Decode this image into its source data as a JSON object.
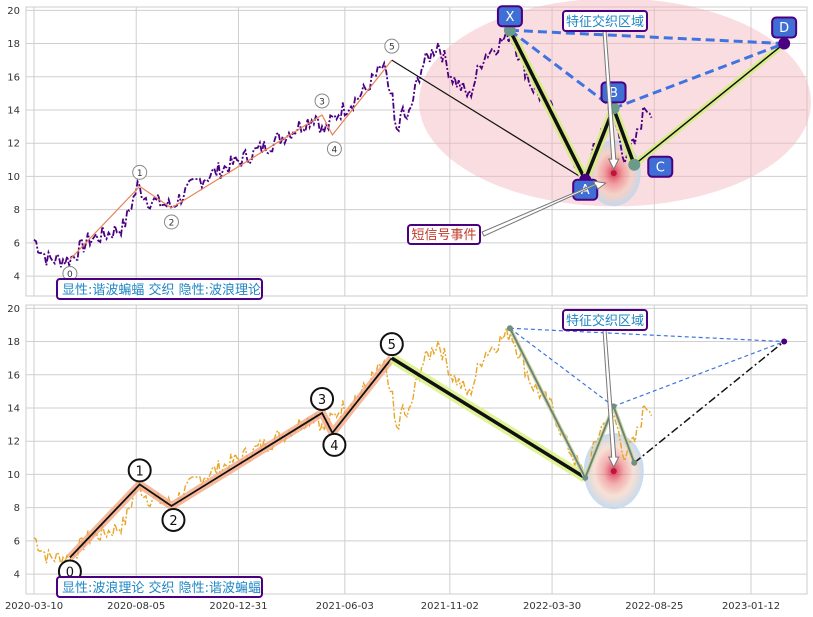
{
  "chart_data": [
    {
      "type": "line",
      "panel": "top",
      "ylim": [
        2.8,
        20.2
      ],
      "yticks": [
        "4",
        "6",
        "8",
        "10",
        "12",
        "14",
        "16",
        "18",
        "20"
      ],
      "grid": true,
      "price_color": "#4b0082",
      "wave_points": [
        {
          "label": "0",
          "date": "2020-05-01",
          "value": 5.0
        },
        {
          "label": "1",
          "date": "2020-08-10",
          "value": 9.4
        },
        {
          "label": "2",
          "date": "2020-09-25",
          "value": 8.1
        },
        {
          "label": "3",
          "date": "2021-05-01",
          "value": 13.7
        },
        {
          "label": "4",
          "date": "2021-05-16",
          "value": 12.5
        },
        {
          "label": "5",
          "date": "2021-08-10",
          "value": 17.0
        }
      ],
      "harmonic_points": [
        {
          "label": "X",
          "date": "2022-01-28",
          "value": 18.8
        },
        {
          "label": "A",
          "date": "2022-05-17",
          "value": 9.8
        },
        {
          "label": "B",
          "date": "2022-06-27",
          "value": 14.1
        },
        {
          "label": "C",
          "date": "2022-07-27",
          "value": 10.7
        },
        {
          "label": "D",
          "date": "2023-03-01",
          "value": 18.0
        }
      ],
      "annotations": {
        "zone_label": "特征交织区域",
        "signal_label": "短信号事件",
        "legend_text": "显性:谐波蝙蝠 交织 隐性:波浪理论"
      }
    },
    {
      "type": "line",
      "panel": "bottom",
      "ylim": [
        2.8,
        20.2
      ],
      "yticks": [
        "4",
        "6",
        "8",
        "10",
        "12",
        "14",
        "16",
        "18",
        "20"
      ],
      "xticks": [
        "2020-03-10",
        "2020-08-05",
        "2020-12-31",
        "2021-06-03",
        "2021-11-02",
        "2022-03-30",
        "2022-08-25",
        "2023-01-12"
      ],
      "grid": true,
      "price_color": "#e8a628",
      "wave_points": [
        {
          "label": "0",
          "date": "2020-05-01",
          "value": 5.0
        },
        {
          "label": "1",
          "date": "2020-08-10",
          "value": 9.4
        },
        {
          "label": "2",
          "date": "2020-09-25",
          "value": 8.1
        },
        {
          "label": "3",
          "date": "2021-05-01",
          "value": 13.7
        },
        {
          "label": "4",
          "date": "2021-05-16",
          "value": 12.5
        },
        {
          "label": "5",
          "date": "2021-08-10",
          "value": 17.0
        }
      ],
      "harmonic_points": [
        {
          "label": "X",
          "date": "2022-01-28",
          "value": 18.8
        },
        {
          "label": "A",
          "date": "2022-05-17",
          "value": 9.8
        },
        {
          "label": "B",
          "date": "2022-06-27",
          "value": 14.1
        },
        {
          "label": "C",
          "date": "2022-07-27",
          "value": 10.7
        },
        {
          "label": "D",
          "date": "2023-03-01",
          "value": 18.0
        }
      ],
      "annotations": {
        "zone_label": "特征交织区域",
        "legend_text": "显性:波浪理论 交织 隐性:谐波蝙蝠"
      }
    }
  ]
}
